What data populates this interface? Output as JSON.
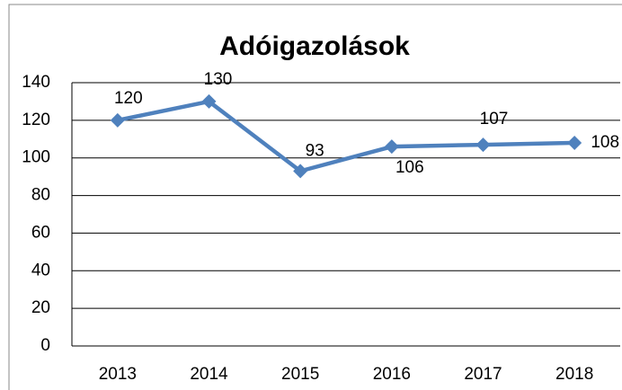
{
  "chart_data": {
    "type": "line",
    "title": "Adóigazolások",
    "categories": [
      "2013",
      "2014",
      "2015",
      "2016",
      "2017",
      "2018"
    ],
    "series": [
      {
        "name": "Adóigazolások",
        "color": "#4f81bd",
        "values": [
          120,
          130,
          93,
          106,
          107,
          108
        ]
      }
    ],
    "ylim": [
      0,
      140
    ],
    "yticks": [
      0,
      20,
      40,
      60,
      80,
      100,
      120,
      140
    ],
    "grid": true
  }
}
